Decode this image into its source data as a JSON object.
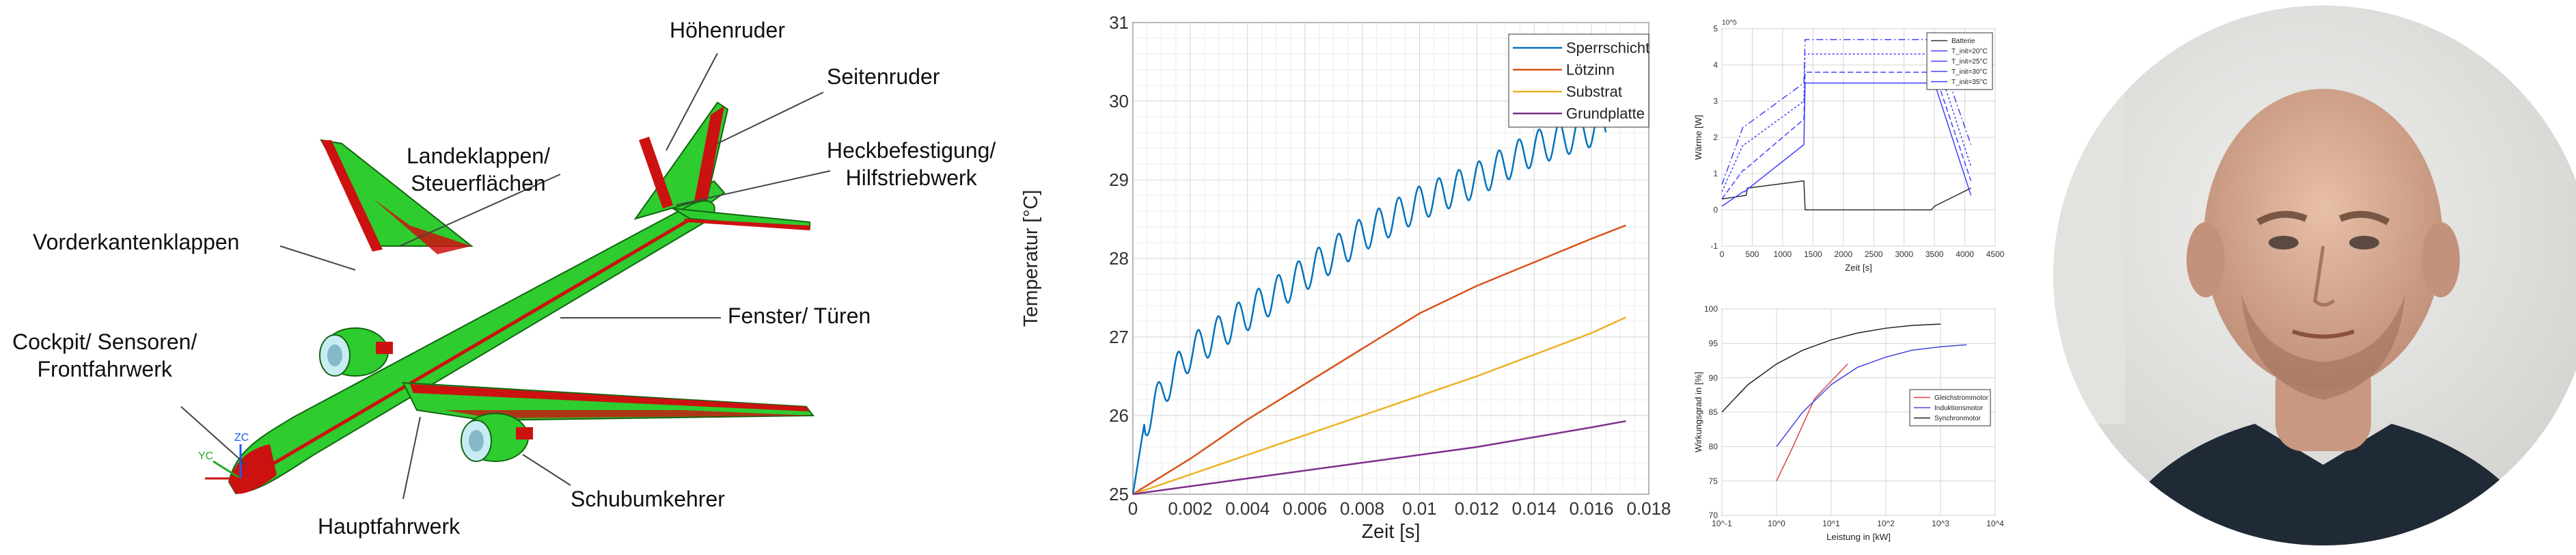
{
  "aircraft": {
    "labels": {
      "hoehenruder": "Höhenruder",
      "seitenruder": "Seitenruder",
      "landeklappen": [
        "Landeklappen/",
        "Steuerflächen"
      ],
      "heck": [
        "Heckbefestigung/",
        "Hilfstriebwerk"
      ],
      "vorderkanten": "Vorderkantenklappen",
      "fenster": "Fenster/ Türen",
      "cockpit": [
        "Cockpit/ Sensoren/",
        "Frontfahrwerk"
      ],
      "schub": "Schubumkehrer",
      "hauptfahrwerk": "Hauptfahrwerk"
    },
    "axis_labels": {
      "zc": "ZC",
      "yc": "YC"
    },
    "colors": {
      "structure": "#2ecc2e",
      "control_surfaces": "#cc1111"
    }
  },
  "chart_data": [
    {
      "type": "line",
      "title": "",
      "xlabel": "Zeit [s]",
      "ylabel": "Temperatur [°C]",
      "xlim": [
        0,
        0.018
      ],
      "ylim": [
        25,
        31
      ],
      "xticks": [
        0,
        0.002,
        0.004,
        0.006,
        0.008,
        0.01,
        0.012,
        0.014,
        0.016,
        0.018
      ],
      "xtick_labels": [
        "0",
        "0.002",
        "0.004",
        "0.006",
        "0.008",
        "0.01",
        "0.012",
        "0.014",
        "0.016",
        "0.018"
      ],
      "yticks": [
        25,
        26,
        27,
        28,
        29,
        30,
        31
      ],
      "grid": true,
      "legend_position": "top-right",
      "series": [
        {
          "name": "Sperrschicht",
          "color": "#0072bd",
          "x": [
            0,
            0.0004,
            0.0012,
            0.002,
            0.004,
            0.006,
            0.008,
            0.01,
            0.012,
            0.014,
            0.0165
          ],
          "y": [
            25.0,
            25.9,
            26.4,
            26.8,
            27.3,
            27.8,
            28.3,
            28.7,
            29.0,
            29.4,
            29.7
          ],
          "ripple_period": 0.0007,
          "ripple_amplitude": 0.22
        },
        {
          "name": "Lötzinn",
          "color": "#d95319",
          "x": [
            0,
            0.002,
            0.004,
            0.006,
            0.008,
            0.01,
            0.012,
            0.014,
            0.016,
            0.0172
          ],
          "y": [
            25.0,
            25.45,
            25.95,
            26.4,
            26.85,
            27.3,
            27.65,
            27.95,
            28.25,
            28.42
          ]
        },
        {
          "name": "Substrat",
          "color": "#edb120",
          "x": [
            0,
            0.004,
            0.008,
            0.012,
            0.016,
            0.0172
          ],
          "y": [
            25.0,
            25.5,
            26.0,
            26.5,
            27.05,
            27.25
          ]
        },
        {
          "name": "Grundplatte",
          "color": "#7e2f8e",
          "x": [
            0,
            0.004,
            0.008,
            0.012,
            0.016,
            0.0172
          ],
          "y": [
            25.0,
            25.2,
            25.4,
            25.6,
            25.85,
            25.93
          ]
        }
      ]
    },
    {
      "type": "line",
      "title": "",
      "xlabel": "Zeit [s]",
      "ylabel": "Wärme [W]",
      "y_exponent": "10^5",
      "xlim": [
        0,
        4500
      ],
      "ylim": [
        -1,
        5
      ],
      "xticks": [
        0,
        500,
        1000,
        1500,
        2000,
        2500,
        3000,
        3500,
        4000,
        4500
      ],
      "yticks": [
        -1,
        0,
        1,
        2,
        3,
        4,
        5
      ],
      "grid": true,
      "legend_position": "top-right",
      "series": [
        {
          "name": "Batterie",
          "color": "#333333",
          "x": [
            0,
            400,
            420,
            1350,
            1370,
            3450,
            3500,
            4100
          ],
          "y": [
            0.3,
            0.4,
            0.6,
            0.8,
            0,
            0,
            0.1,
            0.6
          ]
        },
        {
          "name": "T_init=20°C",
          "color": "#4040ff",
          "x": [
            0,
            350,
            370,
            1350,
            1370,
            3500,
            4100
          ],
          "y": [
            0.1,
            0.5,
            0.5,
            1.8,
            3.5,
            3.5,
            0.4
          ]
        },
        {
          "name": "T_init=25°C",
          "color": "#4040ff",
          "x": [
            0,
            350,
            370,
            1350,
            1370,
            3500,
            4100
          ],
          "y": [
            0.3,
            1.1,
            1.1,
            2.5,
            3.8,
            3.8,
            0.8
          ]
        },
        {
          "name": "T_init=30°C",
          "color": "#4040ff",
          "x": [
            0,
            350,
            370,
            1350,
            1370,
            3500,
            4100
          ],
          "y": [
            0.5,
            1.8,
            1.8,
            3.0,
            4.3,
            4.3,
            1.2
          ]
        },
        {
          "name": "T_init=35°C",
          "color": "#4040ff",
          "x": [
            0,
            350,
            370,
            1350,
            1370,
            3500,
            4100
          ],
          "y": [
            0.7,
            2.3,
            2.3,
            3.5,
            4.7,
            4.7,
            1.8
          ]
        }
      ]
    },
    {
      "type": "line",
      "title": "",
      "xlabel": "Leistung in [kW]",
      "ylabel": "Wirkungsgrad in [%]",
      "x_scale": "log",
      "xlim": [
        0.1,
        10000
      ],
      "ylim": [
        70,
        100
      ],
      "xticks": [
        0.1,
        1,
        10,
        100,
        1000,
        10000
      ],
      "xtick_labels": [
        "10^-1",
        "10^0",
        "10^1",
        "10^2",
        "10^3",
        "10^4"
      ],
      "yticks": [
        70,
        75,
        80,
        85,
        90,
        95,
        100
      ],
      "grid": true,
      "legend_position": "center-right",
      "series": [
        {
          "name": "Gleichstrommotor",
          "color": "#dd4444",
          "x": [
            1,
            2,
            5,
            20
          ],
          "y": [
            75,
            80,
            87,
            92
          ]
        },
        {
          "name": "Induktionsmotor",
          "color": "#4444dd",
          "x": [
            1,
            3,
            10,
            30,
            100,
            300,
            1000,
            3000
          ],
          "y": [
            80,
            85,
            89,
            91.5,
            93,
            94,
            94.5,
            94.8
          ]
        },
        {
          "name": "Synchronmotor",
          "color": "#222222",
          "x": [
            0.1,
            0.3,
            1,
            3,
            10,
            30,
            100,
            300,
            1000
          ],
          "y": [
            85,
            89,
            92,
            94,
            95.5,
            96.5,
            97.2,
            97.6,
            97.8
          ]
        }
      ]
    }
  ]
}
